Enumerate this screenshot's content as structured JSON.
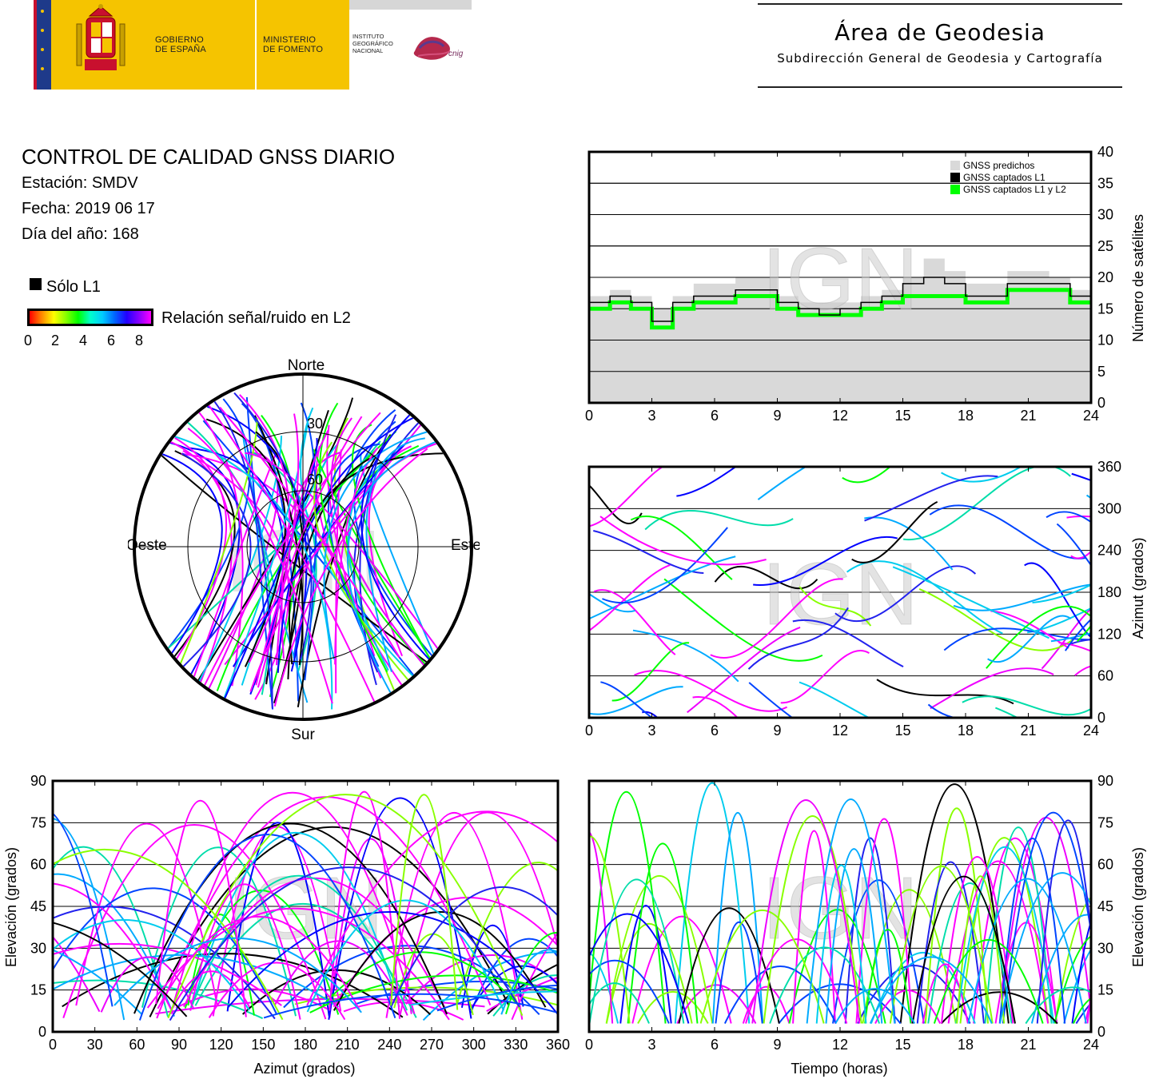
{
  "header": {
    "gov_line1": "GOBIERNO",
    "gov_line2": "DE ESPAÑA",
    "min_line1": "MINISTERIO",
    "min_line2": "DE FOMENTO",
    "ign_line1": "INSTITUTO",
    "ign_line2": "GEOGRÁFICO",
    "ign_line3": "NACIONAL",
    "cnig": "cnig",
    "area_title": "Área de Geodesia",
    "area_subtitle": "Subdirección General de Geodesia y Cartografía"
  },
  "info": {
    "title": "CONTROL DE CALIDAD GNSS DIARIO",
    "station": "Estación: SMDV",
    "date": "Fecha: 2019 06 17",
    "doy": "Día del año: 168",
    "legend_l1": "Sólo L1",
    "legend_snr": "Relación señal/ruido en L2",
    "colorbar_ticks": [
      "0",
      "2",
      "4",
      "6",
      "8"
    ]
  },
  "watermark": "IGN",
  "colors": {
    "predicted": "#d9d9d9",
    "l1": "#000000",
    "l1l2": "#00ff00",
    "magenta": "#ff00ff"
  },
  "chart_data": [
    {
      "type": "area",
      "id": "satellite-count",
      "ylabel": "Número de satélites",
      "xlim": [
        0,
        24
      ],
      "ylim": [
        0,
        40
      ],
      "x_ticks": [
        "0",
        "3",
        "6",
        "9",
        "12",
        "15",
        "18",
        "21",
        "24"
      ],
      "y_ticks": [
        "0",
        "5",
        "10",
        "15",
        "20",
        "25",
        "30",
        "35",
        "40"
      ],
      "legend": [
        "GNSS predichos",
        "GNSS captados L1",
        "GNSS captados L1 y L2"
      ],
      "legend_position": "top-right",
      "grid": true,
      "x": [
        0,
        1,
        2,
        3,
        4,
        5,
        6,
        7,
        8,
        9,
        10,
        11,
        12,
        13,
        14,
        15,
        16,
        17,
        18,
        19,
        20,
        21,
        22,
        23,
        24
      ],
      "series": [
        {
          "name": "GNSS predichos",
          "values": [
            17,
            18,
            17,
            15,
            17,
            19,
            19,
            20,
            20,
            17,
            16,
            16,
            16,
            17,
            18,
            20,
            23,
            21,
            19,
            19,
            21,
            21,
            20,
            18,
            18
          ]
        },
        {
          "name": "GNSS captados L1",
          "values": [
            16,
            17,
            16,
            13,
            16,
            17,
            17,
            18,
            18,
            16,
            15,
            14,
            15,
            16,
            17,
            19,
            20,
            19,
            17,
            17,
            19,
            19,
            19,
            17,
            17
          ]
        },
        {
          "name": "GNSS captados L1 y L2",
          "values": [
            15,
            16,
            15,
            12,
            15,
            16,
            16,
            17,
            17,
            15,
            14,
            14,
            14,
            15,
            16,
            17,
            17,
            17,
            16,
            16,
            18,
            18,
            18,
            16,
            16
          ]
        }
      ]
    },
    {
      "type": "scatter",
      "id": "azimuth-time",
      "ylabel": "Azimut (grados)",
      "xlim": [
        0,
        24
      ],
      "ylim": [
        0,
        360
      ],
      "x_ticks": [
        "0",
        "3",
        "6",
        "9",
        "12",
        "15",
        "18",
        "21",
        "24"
      ],
      "y_ticks": [
        "0",
        "60",
        "120",
        "180",
        "240",
        "300",
        "360"
      ],
      "grid": true
    },
    {
      "type": "scatter",
      "id": "elevation-azimuth",
      "xlabel": "Azimut (grados)",
      "ylabel": "Elevación (grados)",
      "xlim": [
        0,
        360
      ],
      "ylim": [
        0,
        90
      ],
      "x_ticks": [
        "0",
        "30",
        "60",
        "90",
        "120",
        "150",
        "180",
        "210",
        "240",
        "270",
        "300",
        "330",
        "360"
      ],
      "y_ticks": [
        "0",
        "15",
        "30",
        "45",
        "60",
        "75",
        "90"
      ],
      "grid": true
    },
    {
      "type": "scatter",
      "id": "elevation-time",
      "xlabel": "Tiempo (horas)",
      "ylabel": "Elevación (grados)",
      "xlim": [
        0,
        24
      ],
      "ylim": [
        0,
        90
      ],
      "x_ticks": [
        "0",
        "3",
        "6",
        "9",
        "12",
        "15",
        "18",
        "21",
        "24"
      ],
      "y_ticks": [
        "0",
        "15",
        "30",
        "45",
        "60",
        "75",
        "90"
      ],
      "grid": true
    },
    {
      "type": "scatter",
      "id": "skyplot",
      "labels": {
        "north": "Norte",
        "south": "Sur",
        "east": "Este",
        "west": "Oeste"
      },
      "rings": [
        "30",
        "60"
      ]
    }
  ]
}
